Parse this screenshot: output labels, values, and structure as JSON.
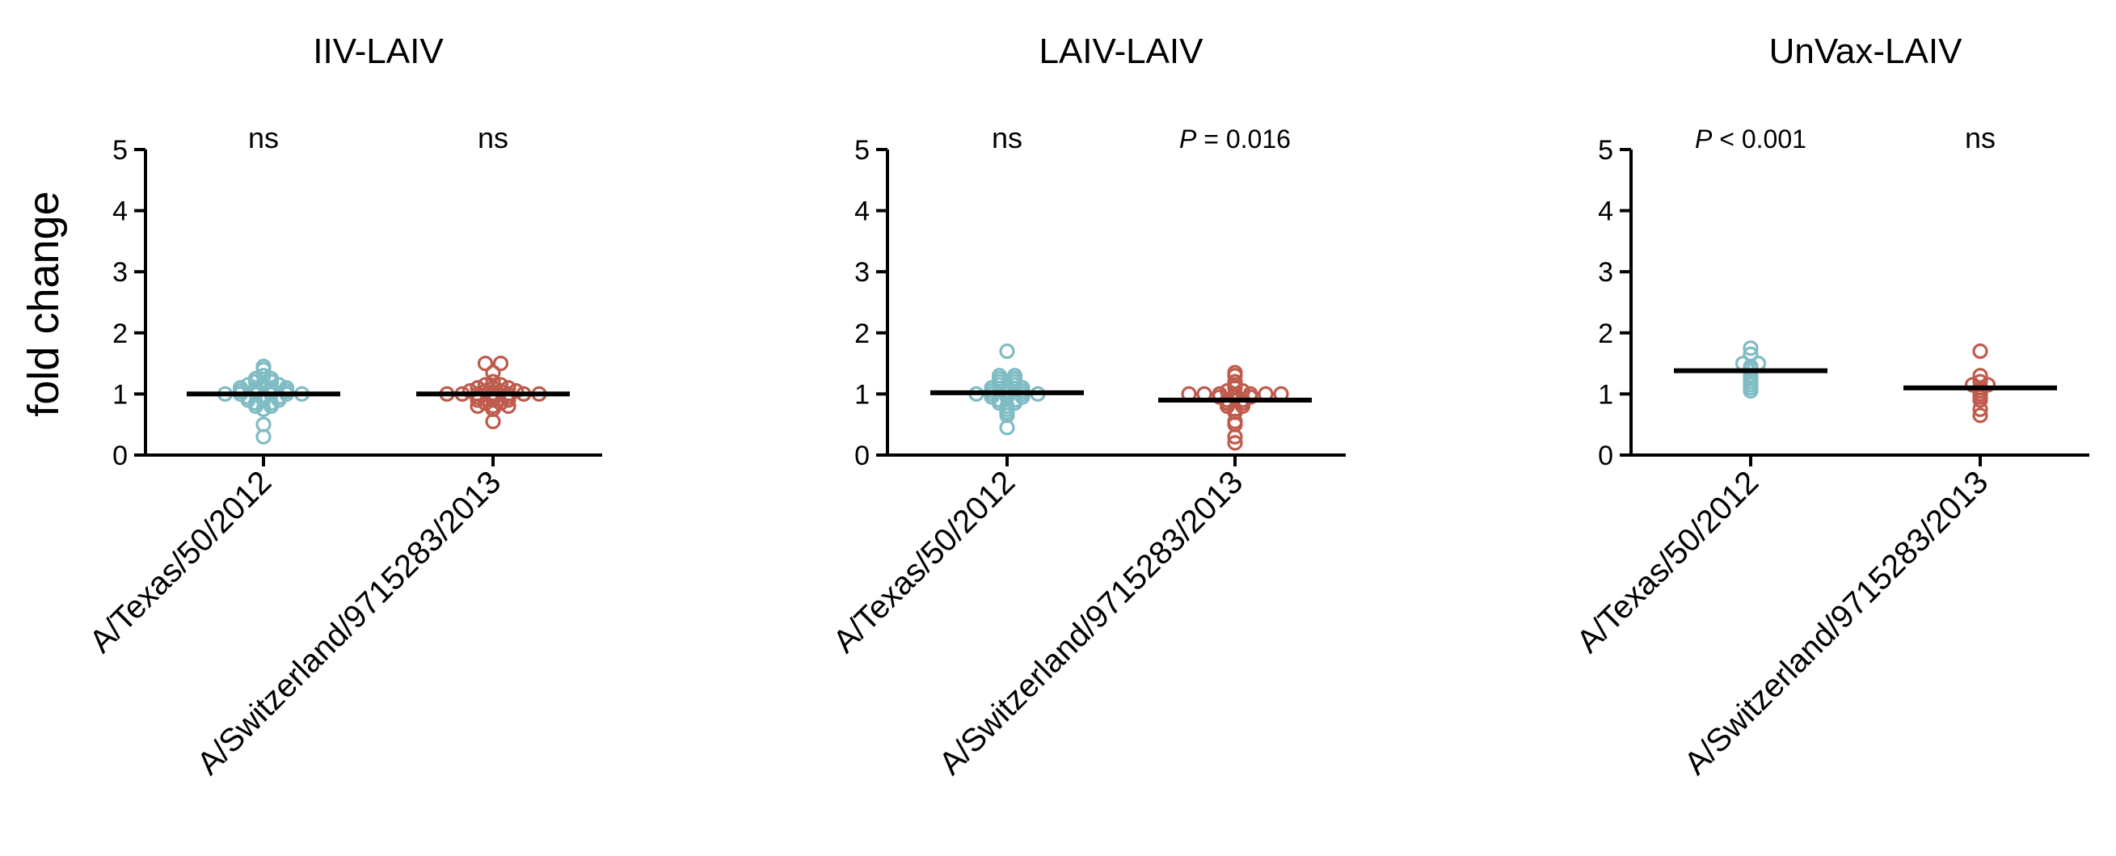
{
  "ylabel": "fold change",
  "colors": {
    "texas": "#7fbcc4",
    "switzerland": "#bf5b4c"
  },
  "chart_data": [
    {
      "type": "scatter",
      "title": "IIV-LAIV",
      "ylim": [
        0,
        5
      ],
      "yticks": [
        "0",
        "1",
        "2",
        "3",
        "4",
        "5"
      ],
      "categories": [
        "A/Texas/50/2012",
        "A/Switzerland/9715283/2013"
      ],
      "significance": [
        {
          "prefix": "",
          "text": "ns"
        },
        {
          "prefix": "",
          "text": "ns"
        }
      ],
      "medians": [
        1.0,
        1.0
      ],
      "series": [
        {
          "values": [
            1.45,
            1.4,
            1.3,
            1.25,
            1.25,
            1.2,
            1.2,
            1.15,
            1.15,
            1.15,
            1.1,
            1.1,
            1.1,
            1.1,
            1.05,
            1.05,
            1.05,
            1.05,
            1.0,
            1.0,
            1.0,
            1.0,
            1.0,
            1.0,
            0.95,
            0.95,
            0.95,
            0.9,
            0.9,
            0.9,
            0.85,
            0.85,
            0.8,
            0.8,
            0.75,
            0.5,
            0.3
          ]
        },
        {
          "values": [
            1.5,
            1.5,
            1.35,
            1.2,
            1.15,
            1.15,
            1.1,
            1.1,
            1.1,
            1.05,
            1.05,
            1.05,
            1.05,
            1.0,
            1.0,
            1.0,
            1.0,
            1.0,
            1.0,
            1.0,
            0.95,
            0.95,
            0.95,
            0.9,
            0.9,
            0.9,
            0.85,
            0.85,
            0.8,
            0.8,
            0.8,
            0.75,
            0.55
          ]
        }
      ]
    },
    {
      "type": "scatter",
      "title": "LAIV-LAIV",
      "ylim": [
        0,
        5
      ],
      "yticks": [
        "0",
        "1",
        "2",
        "3",
        "4",
        "5"
      ],
      "categories": [
        "A/Texas/50/2012",
        "A/Switzerland/9715283/2013"
      ],
      "significance": [
        {
          "prefix": "",
          "text": "ns"
        },
        {
          "prefix": "P",
          "text": " = 0.016"
        }
      ],
      "medians": [
        1.02,
        0.9
      ],
      "series": [
        {
          "values": [
            1.7,
            1.3,
            1.3,
            1.25,
            1.25,
            1.2,
            1.2,
            1.15,
            1.15,
            1.1,
            1.1,
            1.1,
            1.05,
            1.05,
            1.05,
            1.0,
            1.0,
            1.0,
            1.0,
            1.0,
            0.95,
            0.95,
            0.95,
            0.9,
            0.9,
            0.85,
            0.85,
            0.8,
            0.75,
            0.7,
            0.65,
            0.45
          ]
        },
        {
          "values": [
            1.35,
            1.3,
            1.2,
            1.15,
            1.1,
            1.05,
            1.05,
            1.0,
            1.0,
            1.0,
            1.0,
            1.0,
            1.0,
            1.0,
            0.95,
            0.95,
            0.95,
            0.9,
            0.9,
            0.85,
            0.85,
            0.8,
            0.8,
            0.75,
            0.7,
            0.55,
            0.5,
            0.3,
            0.2
          ]
        }
      ]
    },
    {
      "type": "scatter",
      "title": "UnVax-LAIV",
      "ylim": [
        0,
        5
      ],
      "yticks": [
        "0",
        "1",
        "2",
        "3",
        "4",
        "5"
      ],
      "categories": [
        "A/Texas/50/2012",
        "A/Switzerland/9715283/2013"
      ],
      "significance": [
        {
          "prefix": "P",
          "text": " < 0.001"
        },
        {
          "prefix": "",
          "text": "ns"
        }
      ],
      "medians": [
        1.38,
        1.1
      ],
      "series": [
        {
          "values": [
            1.75,
            1.65,
            1.5,
            1.5,
            1.45,
            1.4,
            1.3,
            1.25,
            1.2,
            1.15,
            1.1,
            1.05
          ]
        },
        {
          "values": [
            1.7,
            1.3,
            1.2,
            1.15,
            1.15,
            1.1,
            1.05,
            1.0,
            0.95,
            0.9,
            0.75,
            0.65
          ]
        }
      ]
    }
  ]
}
